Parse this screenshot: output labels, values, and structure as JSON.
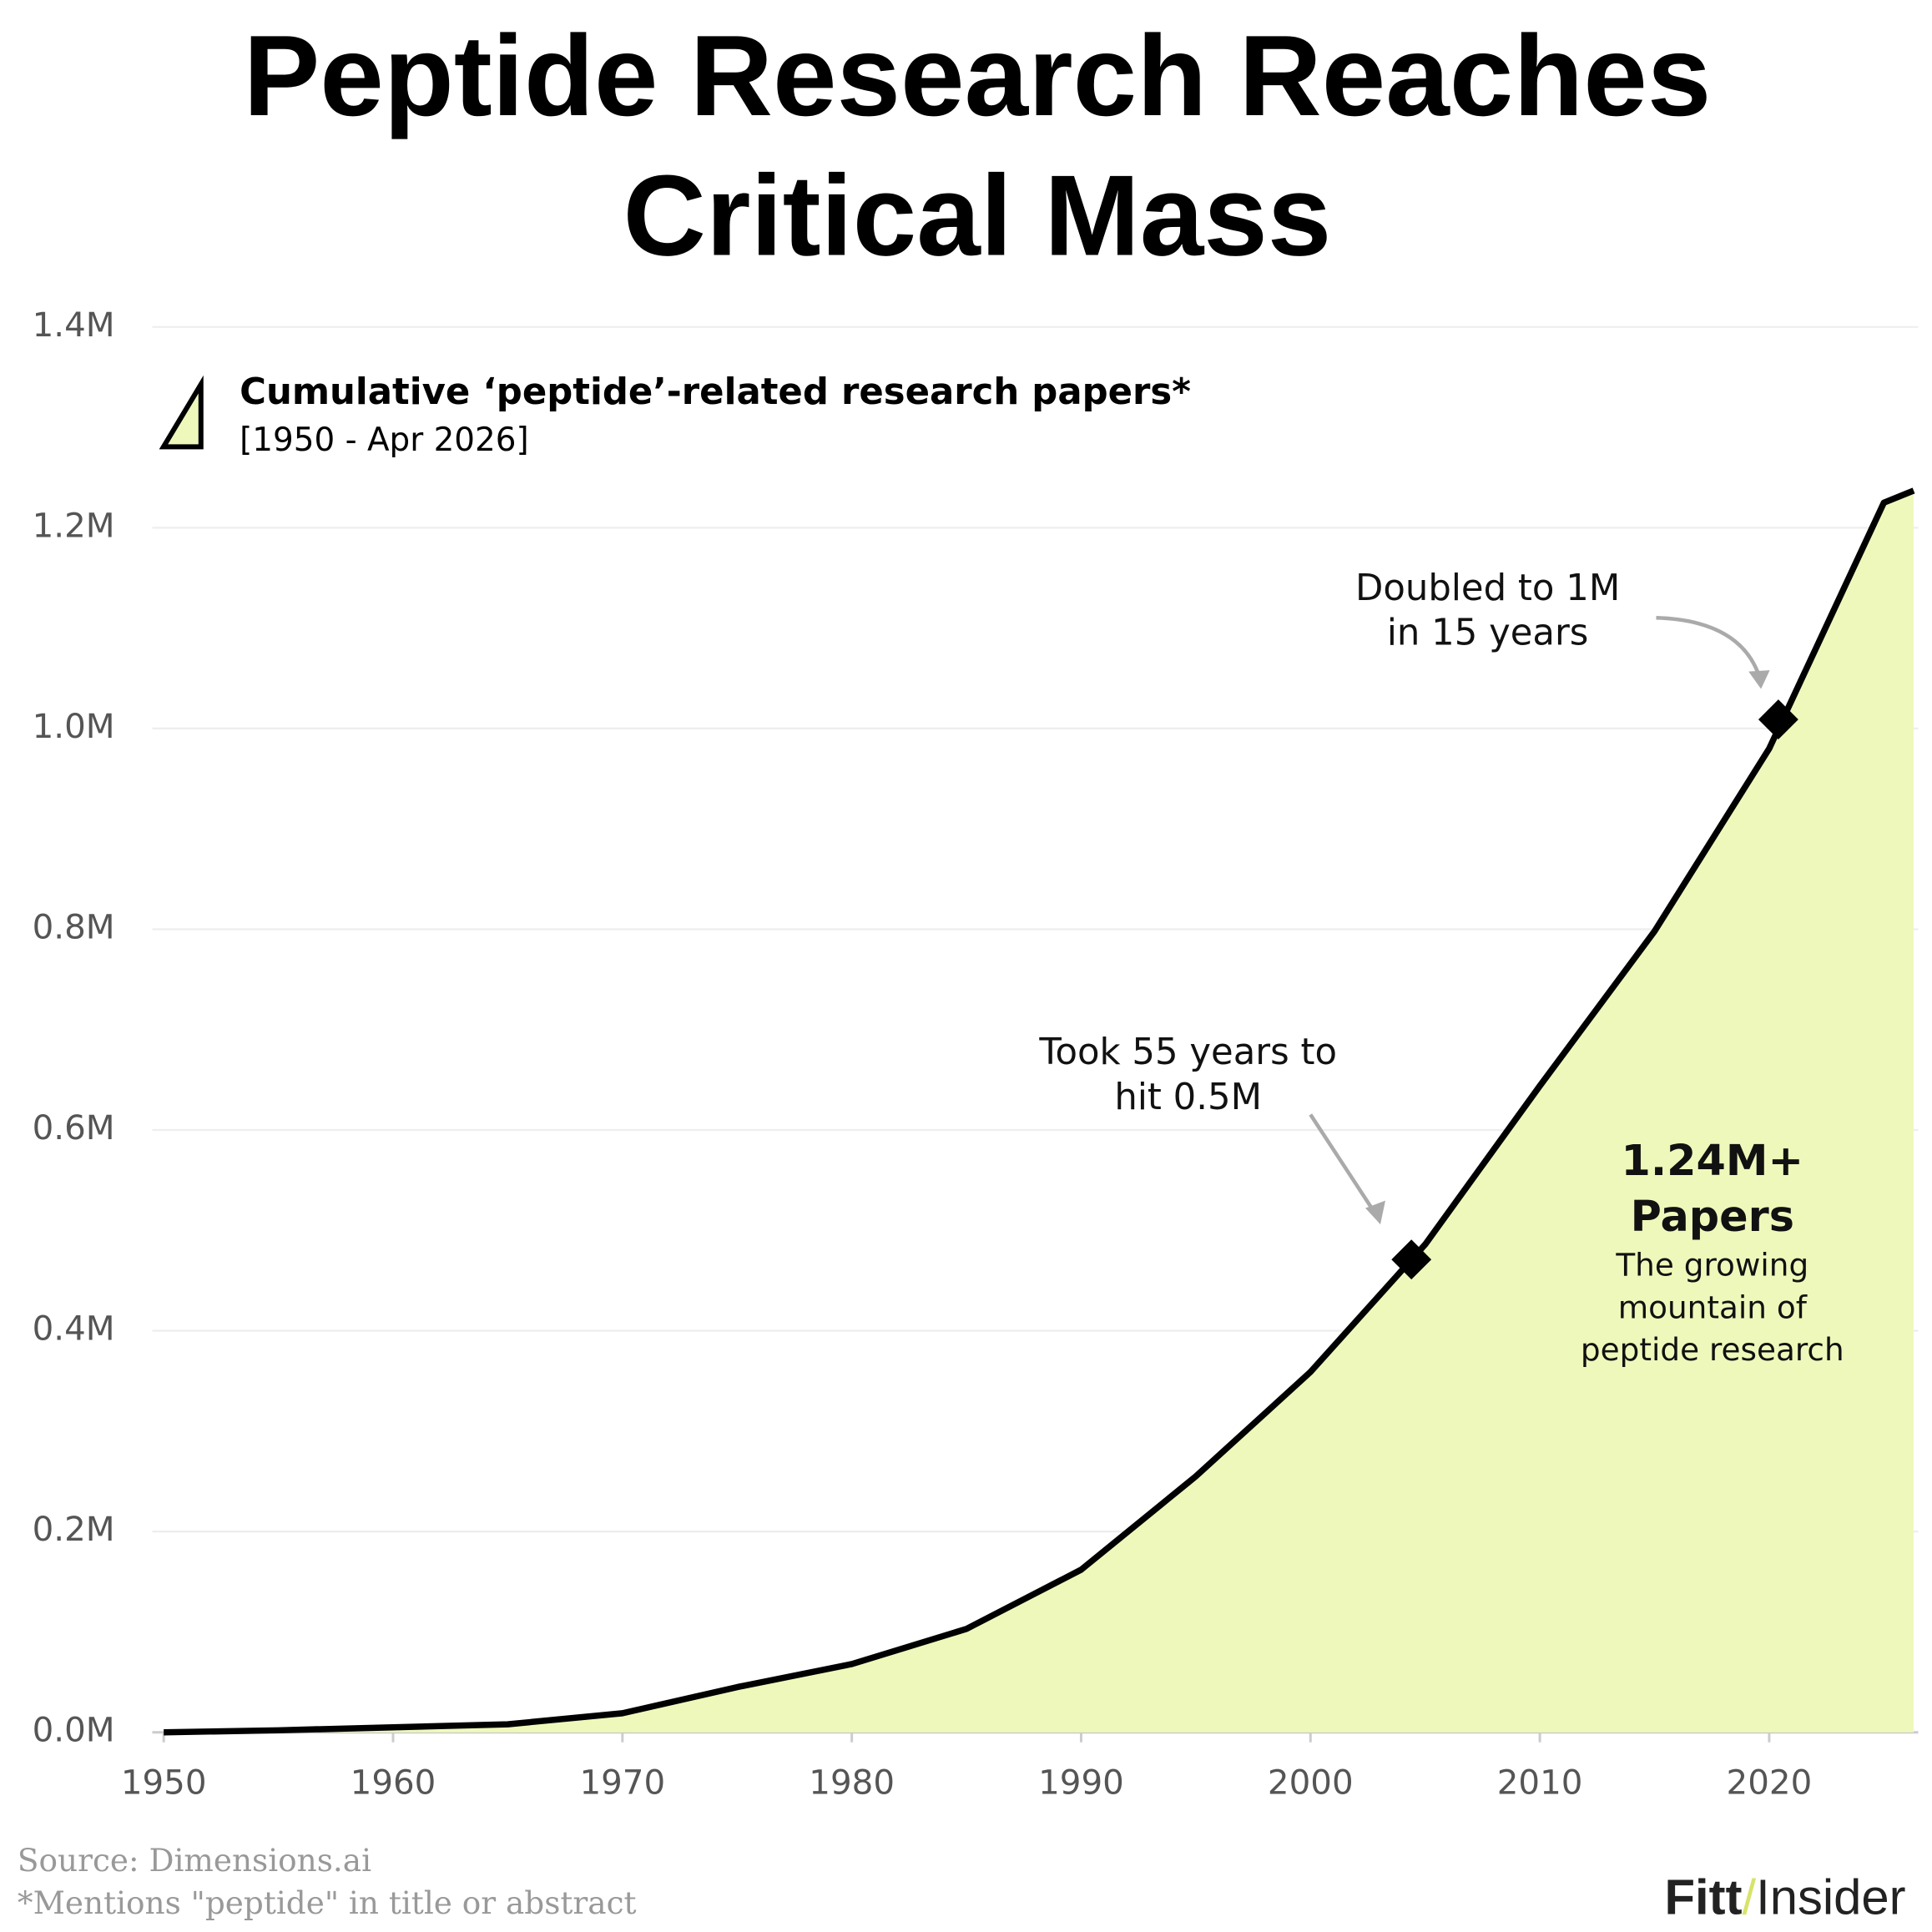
{
  "chart_data": {
    "type": "area",
    "title": [
      "Peptide Research Reaches",
      "Critical Mass"
    ],
    "legend_subtitle": "[1950 - Apr 2026]",
    "x": [
      1950,
      1955,
      1960,
      1965,
      1970,
      1975,
      1980,
      1985,
      1990,
      1995,
      2000,
      2005,
      2010,
      2015,
      2020,
      2025,
      2026.3
    ],
    "series": [
      {
        "name": "Cumulative ‘peptide’-related research papers*",
        "color": "#000000",
        "fill": "#eff8bb",
        "values": [
          0,
          2000,
          5000,
          8000,
          19000,
          45000,
          68000,
          103000,
          162000,
          255000,
          359000,
          486000,
          644000,
          798000,
          980000,
          1225000,
          1237000
        ]
      }
    ],
    "xlim": [
      1949.5,
      2026.5
    ],
    "ylim": [
      0,
      1400000
    ],
    "xticks": [
      1950,
      1960,
      1970,
      1980,
      1990,
      2000,
      2010,
      2020
    ],
    "yticks": [
      {
        "value": 0,
        "label": "0.0M"
      },
      {
        "value": 200000,
        "label": "0.2M"
      },
      {
        "value": 400000,
        "label": "0.4M"
      },
      {
        "value": 600000,
        "label": "0.6M"
      },
      {
        "value": 800000,
        "label": "0.8M"
      },
      {
        "value": 1000000,
        "label": "1.0M"
      },
      {
        "value": 1200000,
        "label": "1.2M"
      },
      {
        "value": 1400000,
        "label": "1.4M"
      }
    ],
    "grid": true,
    "markers": [
      {
        "x": 2004.4,
        "y": 471000
      },
      {
        "x": 2020.4,
        "y": 1009000
      }
    ],
    "annotations": [
      {
        "lines": [
          "Took 55 years to",
          "hit 0.5M"
        ]
      },
      {
        "lines": [
          "Doubled to 1M",
          "in 15 years"
        ]
      },
      {
        "lines": [
          "1.24M+",
          "Papers",
          "The growing",
          "mountain of",
          "peptide research"
        ]
      }
    ],
    "source": "Source: Dimensions.ai",
    "footnote": "*Mentions \"peptide\" in title or abstract",
    "logo": [
      "Fitt",
      "/",
      "Insider"
    ]
  }
}
